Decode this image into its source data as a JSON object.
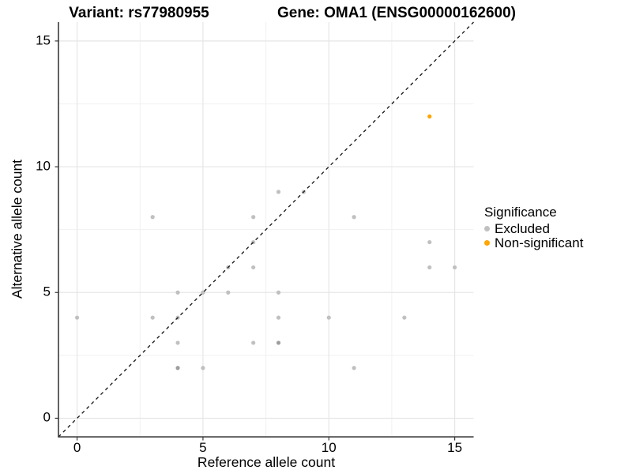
{
  "chart_data": {
    "type": "scatter",
    "titles": {
      "variant": "Variant: rs77980955",
      "gene": "Gene: OMA1 (ENSG00000162600)"
    },
    "xlabel": "Reference allele count",
    "ylabel": "Alternative allele count",
    "x_ticks": [
      0,
      5,
      10,
      15
    ],
    "y_ticks": [
      0,
      5,
      10,
      15
    ],
    "x_minor_ticks": [
      2.5,
      7.5,
      12.5
    ],
    "y_minor_ticks": [
      2.5,
      7.5,
      12.5
    ],
    "xlim": [
      -0.74,
      15.75
    ],
    "ylim": [
      -0.74,
      15.75
    ],
    "grid": true,
    "legend": {
      "title": "Significance",
      "position": "right",
      "items": [
        {
          "label": "Excluded",
          "color": "#c0c0c0"
        },
        {
          "label": "Non-significant",
          "color": "#FFA500"
        }
      ]
    },
    "series": [
      {
        "name": "Excluded",
        "color": "#c0c0c0",
        "overlap_color": "#9e9e9e",
        "points": [
          [
            0,
            4,
            1
          ],
          [
            3,
            4,
            1
          ],
          [
            3,
            8,
            1
          ],
          [
            4,
            2,
            2
          ],
          [
            4,
            3,
            1
          ],
          [
            4,
            4,
            1
          ],
          [
            4,
            5,
            1
          ],
          [
            5,
            2,
            1
          ],
          [
            5,
            5,
            1
          ],
          [
            6,
            5,
            1
          ],
          [
            6,
            6,
            1
          ],
          [
            7,
            3,
            1
          ],
          [
            7,
            6,
            1
          ],
          [
            7,
            7,
            1
          ],
          [
            7,
            8,
            1
          ],
          [
            8,
            3,
            2
          ],
          [
            8,
            4,
            1
          ],
          [
            8,
            5,
            1
          ],
          [
            8,
            9,
            1
          ],
          [
            9,
            9,
            1
          ],
          [
            10,
            4,
            1
          ],
          [
            11,
            2,
            1
          ],
          [
            11,
            8,
            1
          ],
          [
            13,
            4,
            1
          ],
          [
            14,
            6,
            1
          ],
          [
            14,
            7,
            1
          ],
          [
            15,
            6,
            1
          ]
        ]
      },
      {
        "name": "Non-significant",
        "color": "#FFA500",
        "overlap_color": "#e08e00",
        "points": [
          [
            14,
            12,
            1
          ]
        ]
      }
    ],
    "reference_line": {
      "type": "identity y = x",
      "style": "dashed",
      "color": "#111111"
    },
    "style_colors": {
      "grid_major": "#e6e6e6",
      "grid_minor": "#f1f1f1",
      "axis_line": "#3a3a3a",
      "background": "#ffffff"
    }
  }
}
